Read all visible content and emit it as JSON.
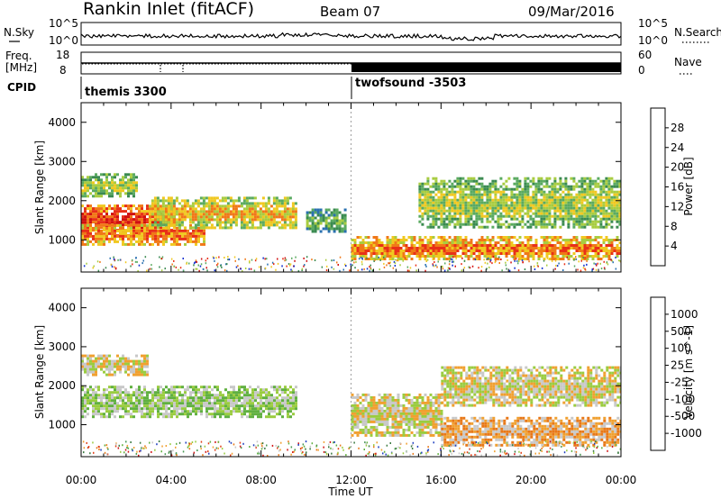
{
  "header": {
    "station": "Rankin Inlet (fitACF)",
    "beam": "Beam 07",
    "date": "09/Mar/2016"
  },
  "noise_panel": {
    "left_label": "N.Sky",
    "right_label": "N.Search",
    "left_ticks": [
      "10^5",
      "10^0"
    ],
    "right_ticks": [
      "10^5",
      "10^0"
    ]
  },
  "freq_panel": {
    "left_label_1": "Freq.",
    "left_label_2": "[MHz]",
    "left_ticks": [
      "18",
      "8"
    ],
    "right_label": "Nave",
    "right_ticks": [
      "60",
      "0"
    ]
  },
  "cpid": {
    "label": "CPID",
    "modes": [
      {
        "name": "themis 3300",
        "start_hour": 0
      },
      {
        "name": "twofsound -3503",
        "start_hour": 12
      }
    ]
  },
  "colors": {
    "power": [
      "#1030d0",
      "#2a70b0",
      "#3a8a50",
      "#5aaa60",
      "#a8cc40",
      "#f0c820",
      "#f07818",
      "#e83018",
      "#d01010"
    ],
    "velocity": [
      "#2040c0",
      "#3a7a40",
      "#4a9a55",
      "#60b040",
      "#9acc40",
      "#c8c8c8",
      "#f0a030",
      "#e87818",
      "#e04018",
      "#d01010"
    ]
  },
  "chart_data": [
    {
      "type": "heatmap",
      "name": "power",
      "ylabel": "Slant Range [km]",
      "xlabel": "Time UT",
      "xlim": [
        "00:00",
        "24:00"
      ],
      "x_ticks": [
        "00:00",
        "04:00",
        "08:00",
        "12:00",
        "16:00",
        "20:00",
        "00:00"
      ],
      "ylim": [
        180,
        4500
      ],
      "y_ticks": [
        1000,
        2000,
        3000,
        4000
      ],
      "colorbar_label": "Power [dB]",
      "colorbar_ticks": [
        "4",
        "8",
        "12",
        "16",
        "20",
        "24",
        "28"
      ],
      "colorbar_range": [
        0,
        30
      ],
      "echo_regions": [
        {
          "t": [
            0.0,
            4.2
          ],
          "r": [
            1100,
            1900
          ],
          "value": 26
        },
        {
          "t": [
            0.0,
            5.5
          ],
          "r": [
            900,
            1400
          ],
          "value": 24
        },
        {
          "t": [
            0.0,
            2.5
          ],
          "r": [
            2100,
            2700
          ],
          "value": 14
        },
        {
          "t": [
            3.0,
            9.5
          ],
          "r": [
            1300,
            2100
          ],
          "value": 18
        },
        {
          "t": [
            10.0,
            11.7
          ],
          "r": [
            1200,
            1800
          ],
          "value": 12
        },
        {
          "t": [
            12.0,
            24.0
          ],
          "r": [
            500,
            1100
          ],
          "value": 22
        },
        {
          "t": [
            15.0,
            24.0
          ],
          "r": [
            1300,
            2600
          ],
          "value": 14
        }
      ]
    },
    {
      "type": "heatmap",
      "name": "velocity",
      "ylabel": "Slant Range [km]",
      "xlabel": "Time UT",
      "xlim": [
        "00:00",
        "24:00"
      ],
      "x_ticks": [
        "00:00",
        "04:00",
        "08:00",
        "12:00",
        "16:00",
        "20:00",
        "00:00"
      ],
      "ylim": [
        180,
        4500
      ],
      "y_ticks": [
        1000,
        2000,
        3000,
        4000
      ],
      "colorbar_label": "Velocity [m s^-1]",
      "colorbar_ticks": [
        "1000",
        "500",
        "100",
        "25",
        "-25",
        "-100",
        "-500",
        "-1000"
      ],
      "colorbar_range": [
        -1000,
        1000
      ],
      "echo_regions": [
        {
          "t": [
            0.0,
            9.5
          ],
          "r": [
            1200,
            2000
          ],
          "value": 80
        },
        {
          "t": [
            0.0,
            3.0
          ],
          "r": [
            2300,
            2800
          ],
          "value": 0
        },
        {
          "t": [
            12.0,
            16.0
          ],
          "r": [
            700,
            1800
          ],
          "value": -150
        },
        {
          "t": [
            16.0,
            24.0
          ],
          "r": [
            500,
            1200
          ],
          "value": -300
        },
        {
          "t": [
            16.0,
            24.0
          ],
          "r": [
            1500,
            2500
          ],
          "value": 0
        }
      ]
    }
  ]
}
